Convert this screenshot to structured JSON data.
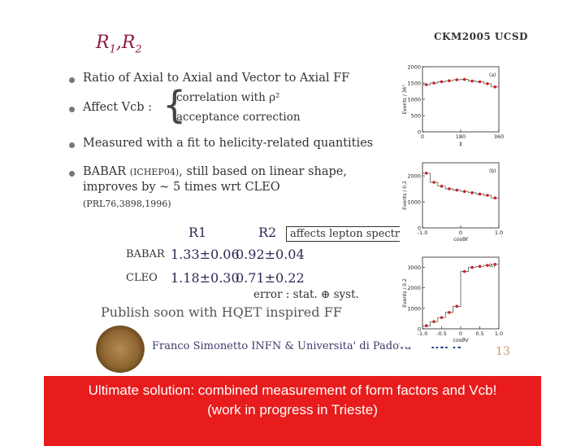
{
  "slide": {
    "title_main": "R",
    "title_sub1": "1",
    "title_sep": ",R",
    "title_sub2": "2",
    "conference": "CKM2005 UCSD"
  },
  "bullets": [
    {
      "text": "Ratio of Axial to Axial and Vector to Axial FF"
    },
    {
      "text": "Affect Vcb :"
    },
    {
      "text": "Measured with a fit to helicity-related quantities"
    },
    {
      "text": "BABAR"
    }
  ],
  "vcb_effects": [
    "correlation with ρ²",
    "acceptance correction"
  ],
  "babar_note": {
    "tag": "(ICHEP04)",
    "rest": ", still based on linear shape,",
    "line2": "improves by ~ 5 times wrt CLEO",
    "ref": "(PRL76,3898,1996)"
  },
  "results_table": {
    "headers": [
      "R1",
      "R2"
    ],
    "annotation": "affects lepton spectrum",
    "rows": [
      {
        "label": "BABAR",
        "r1": "1.33±0.06",
        "r2": "0.92±0.04"
      },
      {
        "label": "CLEO",
        "r1": "1.18±0.30",
        "r2": "0.71±0.22"
      }
    ],
    "error_note": "error : stat. ⊕ syst."
  },
  "publish_note": "Publish soon with HQET inspired FF",
  "footer": {
    "author": "Franco Simonetto INFN & Universita' di Padova",
    "logo_text": "INFN",
    "page_number": "13"
  },
  "banner": {
    "line1": "Ultimate solution: combined measurement of form factors and Vcb!",
    "line2": "(work in progress in Trieste)"
  },
  "colors": {
    "title": "#8b1e3f",
    "banner": "#e81c1c",
    "data_points": "#cc2222"
  },
  "chart_data": [
    {
      "type": "scatter",
      "panel_label": "(a)",
      "xlabel": "χ",
      "ylabel": "Events / 36°",
      "x_ticks": [
        "0",
        "180",
        "360"
      ],
      "y_ticks": [
        "0",
        "500",
        "1000",
        "1500",
        "2000"
      ],
      "xlim": [
        0,
        360
      ],
      "ylim": [
        0,
        2000
      ],
      "x": [
        18,
        54,
        90,
        126,
        162,
        198,
        234,
        270,
        306,
        342
      ],
      "values": [
        1450,
        1500,
        1540,
        1570,
        1600,
        1610,
        1560,
        1540,
        1480,
        1380
      ]
    },
    {
      "type": "scatter",
      "panel_label": "(b)",
      "xlabel": "cosθℓ",
      "ylabel": "Events / 0.2",
      "x_ticks": [
        "-1.0",
        "0",
        "1.0"
      ],
      "y_ticks": [
        "0",
        "1000",
        "2000"
      ],
      "xlim": [
        -1,
        1
      ],
      "ylim": [
        0,
        2500
      ],
      "x": [
        -0.9,
        -0.7,
        -0.5,
        -0.3,
        -0.1,
        0.1,
        0.3,
        0.5,
        0.7,
        0.9
      ],
      "values": [
        2100,
        1750,
        1600,
        1500,
        1450,
        1400,
        1350,
        1300,
        1250,
        1150
      ]
    },
    {
      "type": "scatter",
      "panel_label": "(c)",
      "xlabel": "cosθV",
      "ylabel": "Events / 0.2",
      "x_ticks": [
        "-1.0",
        "-0.5",
        "0",
        "0.5",
        "1.0"
      ],
      "y_ticks": [
        "0",
        "1000",
        "2000",
        "3000"
      ],
      "xlim": [
        -1,
        1
      ],
      "ylim": [
        0,
        3500
      ],
      "x": [
        -0.9,
        -0.7,
        -0.5,
        -0.3,
        -0.1,
        0.1,
        0.3,
        0.5,
        0.7,
        0.9
      ],
      "values": [
        150,
        350,
        550,
        800,
        1100,
        2800,
        3000,
        3050,
        3100,
        3150
      ]
    }
  ]
}
